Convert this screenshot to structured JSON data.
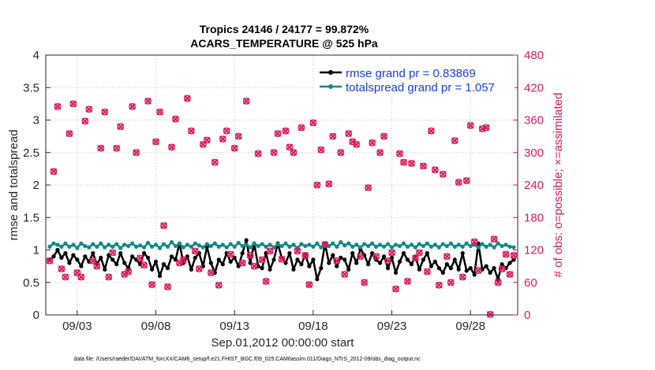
{
  "chart_data": {
    "type": "line",
    "title": "Tropics 24146 / 24177 = 99.872%",
    "subtitle": "ACARS_TEMPERATURE @ 525 hPa",
    "xlabel": "Sep.01,2012 00:00:00 start",
    "ylabel": "rmse and totalspread",
    "y2label": "# of obs: o=possible; ×=assimilated",
    "xlim": [
      1.0,
      31.0
    ],
    "ylim": [
      0,
      4
    ],
    "y2lim": [
      0,
      480
    ],
    "x_tick_values": [
      3,
      8,
      13,
      18,
      23,
      28
    ],
    "x_tick_labels": [
      "09/03",
      "09/08",
      "09/13",
      "09/18",
      "09/23",
      "09/28"
    ],
    "y_tick_labels": [
      "0",
      "0.5",
      "1",
      "1.5",
      "2",
      "2.5",
      "3",
      "3.5",
      "4"
    ],
    "y2_tick_labels": [
      "0",
      "60",
      "120",
      "180",
      "240",
      "300",
      "360",
      "420",
      "480"
    ],
    "footnote": "data file: /Users/raeder/DAI/ATM_forcXX/CAM6_setup/f.e21.FHIST_BGC.f09_025.CAM6assim.011/Diags_NTrS_2012-09/obs_diag_output.nc",
    "legend": [
      "rmse grand pr = 0.83869",
      "totalspread grand pr = 1.057"
    ],
    "legend_location": "top-right",
    "series": [
      {
        "name": "rmse grand pr = 0.83869",
        "color": "#000000",
        "axis": "left",
        "marker": "filled-circle",
        "x": [
          1.25,
          1.5,
          1.75,
          2.0,
          2.25,
          2.5,
          2.75,
          3.0,
          3.25,
          3.5,
          3.75,
          4.0,
          4.25,
          4.5,
          4.75,
          5.0,
          5.25,
          5.5,
          5.75,
          6.0,
          6.25,
          6.5,
          6.75,
          7.0,
          7.25,
          7.5,
          7.75,
          8.0,
          8.25,
          8.5,
          8.75,
          9.0,
          9.25,
          9.5,
          9.75,
          10.0,
          10.25,
          10.5,
          10.75,
          11.0,
          11.25,
          11.5,
          11.75,
          12.0,
          12.25,
          12.5,
          12.75,
          13.0,
          13.25,
          13.5,
          13.75,
          14.0,
          14.25,
          14.5,
          14.75,
          15.0,
          15.25,
          15.5,
          15.75,
          16.0,
          16.25,
          16.5,
          16.75,
          17.0,
          17.25,
          17.5,
          17.75,
          18.0,
          18.25,
          18.5,
          18.75,
          19.0,
          19.25,
          19.5,
          19.75,
          20.0,
          20.25,
          20.5,
          20.75,
          21.0,
          21.25,
          21.5,
          21.75,
          22.0,
          22.25,
          22.5,
          22.75,
          23.0,
          23.25,
          23.5,
          23.75,
          24.0,
          24.25,
          24.5,
          24.75,
          25.0,
          25.25,
          25.5,
          25.75,
          26.0,
          26.25,
          26.5,
          26.75,
          27.0,
          27.25,
          27.5,
          27.75,
          28.0,
          28.25,
          28.5,
          28.75,
          29.0,
          29.25,
          29.5,
          29.75,
          30.0,
          30.25,
          30.5,
          30.75
        ],
        "y": [
          0.85,
          0.9,
          1.0,
          0.88,
          0.95,
          0.8,
          0.92,
          0.85,
          0.75,
          0.9,
          0.82,
          0.95,
          0.78,
          0.88,
          0.7,
          0.92,
          0.85,
          0.78,
          0.95,
          0.8,
          0.72,
          0.9,
          0.85,
          0.78,
          0.95,
          0.88,
          0.7,
          0.82,
          0.6,
          0.78,
          0.72,
          0.9,
          0.85,
          1.1,
          0.8,
          0.9,
          0.7,
          0.88,
          0.95,
          0.75,
          1.05,
          0.8,
          0.65,
          0.85,
          0.78,
          0.95,
          0.82,
          0.88,
          0.75,
          0.95,
          1.15,
          0.8,
          1.1,
          0.75,
          0.72,
          0.95,
          0.7,
          0.85,
          1.1,
          0.88,
          0.8,
          0.95,
          0.7,
          0.85,
          0.78,
          0.92,
          0.75,
          0.85,
          0.55,
          0.72,
          1.1,
          0.8,
          0.92,
          0.75,
          0.88,
          0.85,
          0.7,
          0.95,
          0.8,
          1.02,
          0.92,
          0.78,
          0.95,
          0.85,
          0.8,
          0.9,
          0.72,
          0.88,
          0.65,
          0.82,
          0.95,
          0.85,
          0.78,
          0.9,
          0.7,
          0.85,
          0.95,
          0.75,
          0.82,
          0.72,
          0.65,
          0.78,
          0.72,
          0.85,
          0.7,
          0.95,
          0.68,
          0.72,
          0.62,
          1.1,
          0.7,
          0.75,
          0.65,
          0.72,
          0.55,
          0.78,
          0.72,
          0.8,
          0.85
        ]
      },
      {
        "name": "totalspread grand pr = 1.057",
        "color": "#108a8a",
        "axis": "left",
        "marker": "filled-circle",
        "x": [
          1.25,
          1.5,
          1.75,
          2.0,
          2.25,
          2.5,
          2.75,
          3.0,
          3.25,
          3.5,
          3.75,
          4.0,
          4.25,
          4.5,
          4.75,
          5.0,
          5.25,
          5.5,
          5.75,
          6.0,
          6.25,
          6.5,
          6.75,
          7.0,
          7.25,
          7.5,
          7.75,
          8.0,
          8.25,
          8.5,
          8.75,
          9.0,
          9.25,
          9.5,
          9.75,
          10.0,
          10.25,
          10.5,
          10.75,
          11.0,
          11.25,
          11.5,
          11.75,
          12.0,
          12.25,
          12.5,
          12.75,
          13.0,
          13.25,
          13.5,
          13.75,
          14.0,
          14.25,
          14.5,
          14.75,
          15.0,
          15.25,
          15.5,
          15.75,
          16.0,
          16.25,
          16.5,
          16.75,
          17.0,
          17.25,
          17.5,
          17.75,
          18.0,
          18.25,
          18.5,
          18.75,
          19.0,
          19.25,
          19.5,
          19.75,
          20.0,
          20.25,
          20.5,
          20.75,
          21.0,
          21.25,
          21.5,
          21.75,
          22.0,
          22.25,
          22.5,
          22.75,
          23.0,
          23.25,
          23.5,
          23.75,
          24.0,
          24.25,
          24.5,
          24.75,
          25.0,
          25.25,
          25.5,
          25.75,
          26.0,
          26.25,
          26.5,
          26.75,
          27.0,
          27.25,
          27.5,
          27.75,
          28.0,
          28.25,
          28.5,
          28.75,
          29.0,
          29.25,
          29.5,
          29.75,
          30.0,
          30.25,
          30.5,
          30.75
        ],
        "y": [
          1.05,
          1.1,
          1.08,
          1.05,
          1.1,
          1.05,
          1.08,
          1.03,
          1.1,
          1.06,
          1.04,
          1.09,
          1.05,
          1.1,
          1.04,
          1.08,
          1.05,
          1.09,
          1.03,
          1.08,
          1.06,
          1.1,
          1.05,
          1.07,
          1.04,
          1.11,
          1.05,
          1.08,
          1.03,
          1.09,
          1.05,
          1.12,
          1.06,
          1.1,
          1.04,
          1.08,
          1.05,
          1.1,
          1.07,
          1.04,
          1.09,
          1.06,
          1.1,
          1.05,
          1.08,
          1.04,
          1.09,
          1.05,
          1.11,
          1.06,
          1.08,
          1.04,
          1.1,
          1.06,
          1.09,
          1.05,
          1.08,
          1.04,
          1.09,
          1.06,
          1.1,
          1.05,
          1.08,
          1.03,
          1.09,
          1.06,
          1.08,
          1.05,
          1.1,
          1.04,
          1.08,
          1.06,
          1.1,
          1.05,
          1.12,
          1.07,
          1.1,
          1.05,
          1.08,
          1.04,
          1.09,
          1.06,
          1.1,
          1.05,
          1.08,
          1.05,
          1.09,
          1.04,
          1.08,
          1.06,
          1.1,
          1.05,
          1.08,
          1.04,
          1.09,
          1.06,
          1.1,
          1.05,
          1.08,
          1.04,
          1.09,
          1.06,
          1.1,
          1.05,
          1.08,
          1.05,
          1.1,
          1.06,
          1.08,
          1.04,
          1.09,
          1.05,
          1.08,
          1.04,
          1.1,
          1.06,
          1.08,
          1.05,
          1.04
        ]
      },
      {
        "name": "# of obs possible",
        "color": "#d81b60",
        "axis": "right",
        "marker": "circle",
        "x": [
          1.25,
          1.5,
          1.75,
          2.0,
          2.25,
          2.5,
          2.75,
          3.0,
          3.25,
          3.5,
          3.75,
          4.0,
          4.25,
          4.5,
          4.75,
          5.0,
          5.25,
          5.5,
          5.75,
          6.0,
          6.25,
          6.5,
          6.75,
          7.0,
          7.25,
          7.5,
          7.75,
          8.0,
          8.25,
          8.5,
          8.75,
          9.0,
          9.25,
          9.5,
          9.75,
          10.0,
          10.25,
          10.5,
          10.75,
          11.0,
          11.25,
          11.5,
          11.75,
          12.0,
          12.25,
          12.5,
          12.75,
          13.0,
          13.25,
          13.5,
          13.75,
          14.0,
          14.25,
          14.5,
          14.75,
          15.0,
          15.25,
          15.5,
          15.75,
          16.0,
          16.25,
          16.5,
          16.75,
          17.0,
          17.25,
          17.5,
          17.75,
          18.0,
          18.25,
          18.5,
          18.75,
          19.0,
          19.25,
          19.5,
          19.75,
          20.0,
          20.25,
          20.5,
          20.75,
          21.0,
          21.25,
          21.5,
          21.75,
          22.0,
          22.25,
          22.5,
          22.75,
          23.0,
          23.25,
          23.5,
          23.75,
          24.0,
          24.25,
          24.5,
          24.75,
          25.0,
          25.25,
          25.5,
          25.75,
          26.0,
          26.25,
          26.5,
          26.75,
          27.0,
          27.25,
          27.5,
          27.75,
          28.0,
          28.25,
          28.5,
          28.75,
          29.0,
          29.25,
          29.5,
          29.75,
          30.0,
          30.25,
          30.5,
          30.75
        ],
        "y": [
          100,
          265,
          385,
          85,
          70,
          335,
          390,
          78,
          70,
          358,
          380,
          100,
          90,
          308,
          375,
          70,
          115,
          308,
          348,
          75,
          80,
          385,
          300,
          105,
          92,
          395,
          56,
          320,
          375,
          165,
          52,
          310,
          362,
          96,
          102,
          400,
          340,
          118,
          85,
          315,
          323,
          78,
          282,
          55,
          325,
          340,
          112,
          308,
          330,
          96,
          395,
          110,
          90,
          298,
          102,
          62,
          118,
          300,
          335,
          103,
          340,
          310,
          300,
          118,
          346,
          110,
          56,
          355,
          240,
          305,
          130,
          242,
          330,
          100,
          300,
          75,
          335,
          320,
          315,
          108,
          60,
          235,
          318,
          108,
          300,
          330,
          100,
          115,
          48,
          298,
          282,
          62,
          280,
          105,
          115,
          275,
          80,
          340,
          268,
          55,
          260,
          108,
          60,
          322,
          245,
          70,
          248,
          350,
          135,
          82,
          344,
          346,
          1,
          140,
          60,
          85,
          112,
          75,
          110
        ]
      },
      {
        "name": "# of obs assimilated",
        "color": "#d81b60",
        "axis": "right",
        "marker": "x",
        "x": [
          1.25,
          1.5,
          1.75,
          2.0,
          2.25,
          2.5,
          2.75,
          3.0,
          3.25,
          3.5,
          3.75,
          4.0,
          4.25,
          4.5,
          4.75,
          5.0,
          5.25,
          5.5,
          5.75,
          6.0,
          6.25,
          6.5,
          6.75,
          7.0,
          7.25,
          7.5,
          7.75,
          8.0,
          8.25,
          8.5,
          8.75,
          9.0,
          9.25,
          9.5,
          9.75,
          10.0,
          10.25,
          10.5,
          10.75,
          11.0,
          11.25,
          11.5,
          11.75,
          12.0,
          12.25,
          12.5,
          12.75,
          13.0,
          13.25,
          13.5,
          13.75,
          14.0,
          14.25,
          14.5,
          14.75,
          15.0,
          15.25,
          15.5,
          15.75,
          16.0,
          16.25,
          16.5,
          16.75,
          17.0,
          17.25,
          17.5,
          17.75,
          18.0,
          18.25,
          18.5,
          18.75,
          19.0,
          19.25,
          19.5,
          19.75,
          20.0,
          20.25,
          20.5,
          20.75,
          21.0,
          21.25,
          21.5,
          21.75,
          22.0,
          22.25,
          22.5,
          22.75,
          23.0,
          23.25,
          23.5,
          23.75,
          24.0,
          24.25,
          24.5,
          24.75,
          25.0,
          25.25,
          25.5,
          25.75,
          26.0,
          26.25,
          26.5,
          26.75,
          27.0,
          27.25,
          27.5,
          27.75,
          28.0,
          28.25,
          28.5,
          28.75,
          29.0,
          29.25,
          29.5,
          29.75,
          30.0,
          30.25,
          30.5,
          30.75
        ],
        "y": [
          100,
          265,
          385,
          85,
          70,
          335,
          390,
          78,
          70,
          358,
          380,
          100,
          90,
          308,
          375,
          70,
          115,
          308,
          348,
          75,
          80,
          385,
          300,
          105,
          92,
          395,
          56,
          320,
          375,
          165,
          52,
          310,
          362,
          96,
          102,
          400,
          340,
          118,
          85,
          315,
          323,
          78,
          282,
          55,
          325,
          340,
          112,
          308,
          330,
          96,
          395,
          110,
          90,
          298,
          102,
          62,
          118,
          300,
          335,
          103,
          340,
          310,
          300,
          118,
          346,
          110,
          56,
          355,
          240,
          305,
          130,
          242,
          330,
          100,
          300,
          75,
          335,
          320,
          315,
          108,
          60,
          235,
          318,
          108,
          300,
          330,
          100,
          115,
          48,
          298,
          282,
          62,
          280,
          105,
          115,
          275,
          80,
          340,
          268,
          55,
          260,
          108,
          60,
          322,
          245,
          70,
          248,
          350,
          135,
          82,
          344,
          346,
          1,
          140,
          60,
          85,
          112,
          75,
          110
        ]
      }
    ]
  }
}
